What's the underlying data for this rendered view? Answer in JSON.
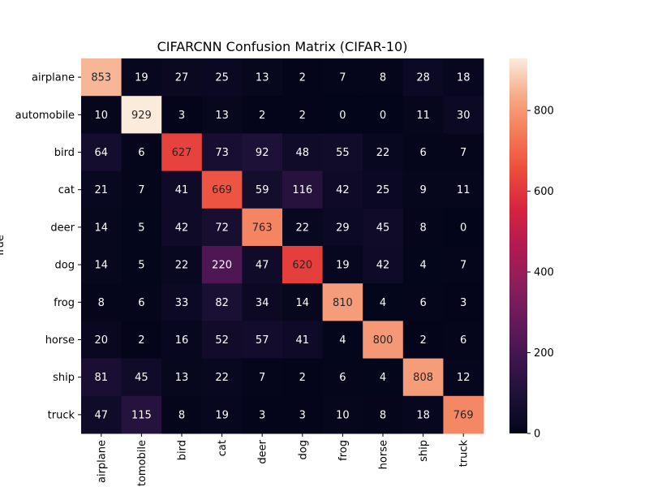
{
  "chart_data": {
    "type": "heatmap",
    "title": "CIFARCNN Confusion Matrix (CIFAR-10)",
    "xlabel": "",
    "ylabel": "True",
    "x_tick_labels": [
      "airplane",
      "automobile",
      "bird",
      "cat",
      "deer",
      "dog",
      "frog",
      "horse",
      "ship",
      "truck"
    ],
    "y_tick_labels": [
      "airplane",
      "automobile",
      "bird",
      "cat",
      "deer",
      "dog",
      "frog",
      "horse",
      "ship",
      "truck"
    ],
    "values": [
      [
        853,
        19,
        27,
        25,
        13,
        2,
        7,
        8,
        28,
        18
      ],
      [
        10,
        929,
        3,
        13,
        2,
        2,
        0,
        0,
        11,
        30
      ],
      [
        64,
        6,
        627,
        73,
        92,
        48,
        55,
        22,
        6,
        7
      ],
      [
        21,
        7,
        41,
        669,
        59,
        116,
        42,
        25,
        9,
        11
      ],
      [
        14,
        5,
        42,
        72,
        763,
        22,
        29,
        45,
        8,
        0
      ],
      [
        14,
        5,
        22,
        220,
        47,
        620,
        19,
        42,
        4,
        7
      ],
      [
        8,
        6,
        33,
        82,
        34,
        14,
        810,
        4,
        6,
        3
      ],
      [
        20,
        2,
        16,
        52,
        57,
        41,
        4,
        800,
        2,
        6
      ],
      [
        81,
        45,
        13,
        22,
        7,
        2,
        6,
        4,
        808,
        12
      ],
      [
        47,
        115,
        8,
        19,
        3,
        3,
        10,
        8,
        18,
        769
      ]
    ],
    "colorbar": {
      "range": [
        0,
        929
      ],
      "ticks": [
        0,
        200,
        400,
        600,
        800
      ],
      "colormap": "rocket"
    }
  }
}
